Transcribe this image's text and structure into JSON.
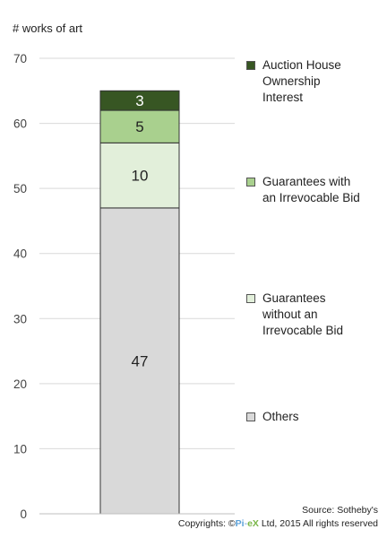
{
  "chart_data": {
    "type": "bar",
    "stacked": true,
    "ylabel": "# works of art",
    "ylim": [
      0,
      70
    ],
    "yticks": [
      0,
      10,
      20,
      30,
      40,
      50,
      60,
      70
    ],
    "grid": true,
    "legend_position": "right",
    "categories": [
      ""
    ],
    "series": [
      {
        "name": "Others",
        "values": [
          47
        ],
        "color": "#d9d9d9"
      },
      {
        "name": "Guarantees without an Irrevocable Bid",
        "values": [
          10
        ],
        "color": "#e2efda"
      },
      {
        "name": "Guarantees with an Irrevocable Bid",
        "values": [
          5
        ],
        "color": "#a9d08e"
      },
      {
        "name": "Auction House Ownership Interest",
        "values": [
          3
        ],
        "color": "#375623"
      }
    ],
    "source": "Source: Sotheby's"
  },
  "legend_lines": {
    "Auction House Ownership Interest": [
      "Auction House",
      "Ownership",
      "Interest"
    ],
    "Guarantees with an Irrevocable Bid": [
      "Guarantees with",
      "an Irrevocable Bid"
    ],
    "Guarantees without an Irrevocable Bid": [
      "Guarantees",
      "without an",
      "Irrevocable Bid"
    ],
    "Others": [
      "Others"
    ]
  },
  "copyright": {
    "prefix": "Copyrights: ©",
    "brand_pi": "Pi",
    "brand_dash": "-",
    "brand_ex": "eX",
    "suffix": " Ltd, 2015 All rights reserved"
  }
}
